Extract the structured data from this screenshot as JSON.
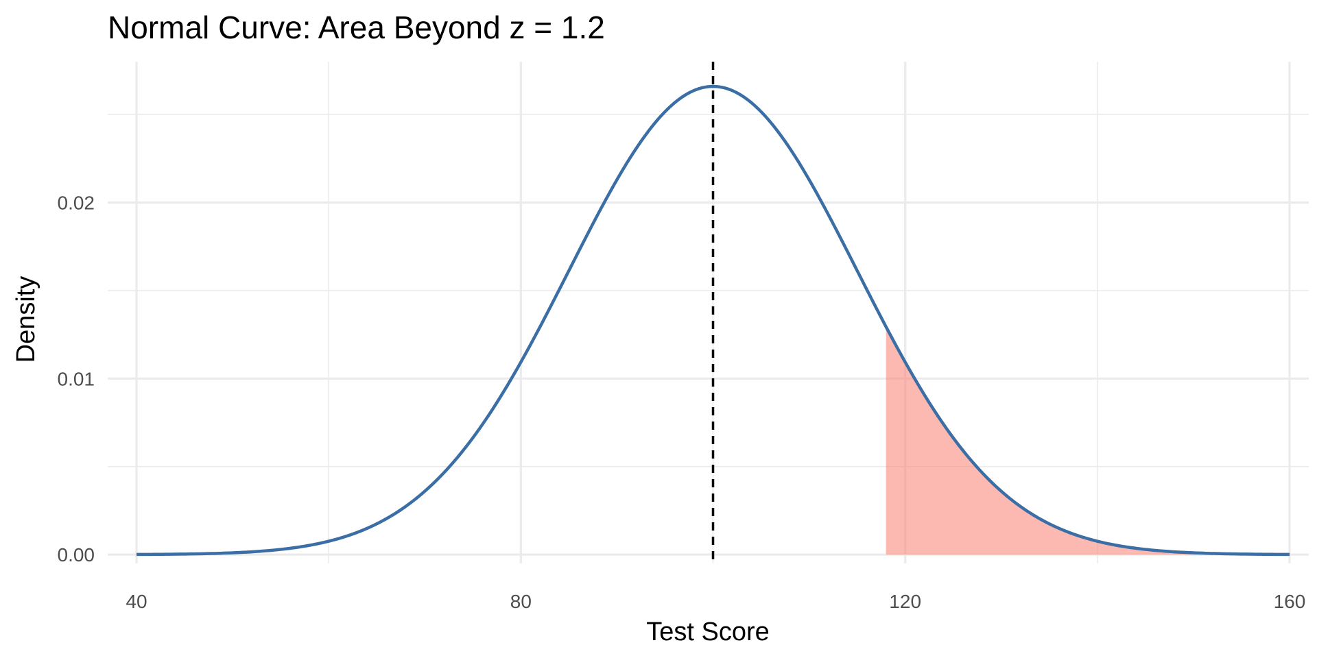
{
  "chart_data": {
    "type": "area",
    "title": "Normal Curve: Area Beyond z = 1.2",
    "xlabel": "Test Score",
    "ylabel": "Density",
    "xlim": [
      37,
      162
    ],
    "ylim": [
      -0.0005,
      0.028
    ],
    "x_ticks": [
      {
        "value": 40,
        "label": "40"
      },
      {
        "value": 80,
        "label": "80"
      },
      {
        "value": 120,
        "label": "120"
      },
      {
        "value": 160,
        "label": "160"
      }
    ],
    "y_ticks": [
      {
        "value": 0.0,
        "label": "0.00"
      },
      {
        "value": 0.01,
        "label": "0.01"
      },
      {
        "value": 0.02,
        "label": "0.02"
      }
    ],
    "x_minor_gridlines": [
      60,
      100,
      140
    ],
    "y_minor_gridlines": [
      0.005,
      0.015,
      0.025
    ],
    "grid": true,
    "legend": "none",
    "distribution": {
      "mean": 100,
      "sd": 15,
      "x_range": [
        40,
        160
      ],
      "peak_density": 0.0266
    },
    "mean_line": {
      "x": 100,
      "style": "dashed"
    },
    "shaded_region": {
      "from_x": 118,
      "to_x": 160,
      "z": 1.2
    },
    "colors": {
      "curve": "#3a6ea5",
      "shade": "#fa8072",
      "mean_line": "#000000",
      "grid": "#ebebeb",
      "tick_text": "#4d4d4d"
    }
  }
}
